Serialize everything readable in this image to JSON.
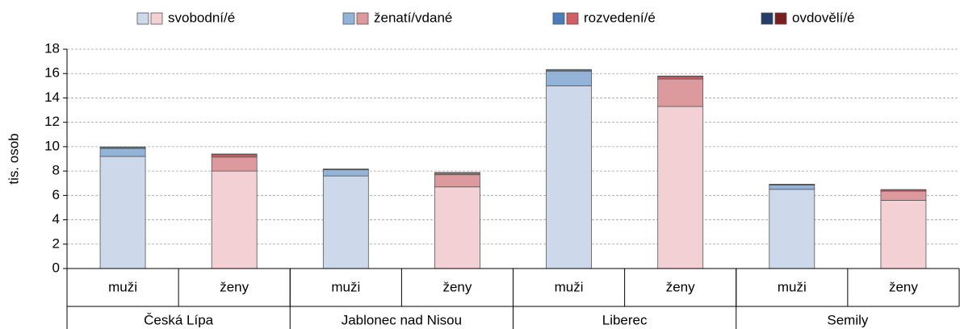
{
  "chart_data": {
    "type": "stacked_bar",
    "y_label": "tis. osob",
    "groups": [
      "Česká Lípa",
      "Jablonec nad Nisou",
      "Liberec",
      "Semily"
    ],
    "categories": [
      "muži",
      "ženy",
      "muži",
      "ženy",
      "muži",
      "ženy",
      "muži",
      "ženy"
    ],
    "series": [
      {
        "name": "svobodní/é",
        "colors": [
          "#cdd9ea",
          "#f2d0d3"
        ],
        "values": [
          9.2,
          8.0,
          7.6,
          6.7,
          15.0,
          13.3,
          6.5,
          5.6
        ]
      },
      {
        "name": "ženatí/vdané",
        "colors": [
          "#94b3d8",
          "#dc9a9f"
        ],
        "values": [
          0.65,
          1.15,
          0.5,
          1.0,
          1.2,
          2.25,
          0.35,
          0.75
        ]
      },
      {
        "name": "rozvedení/é",
        "colors": [
          "#4a7ebb",
          "#cf5f65"
        ],
        "values": [
          0.1,
          0.2,
          0.05,
          0.15,
          0.1,
          0.2,
          0.05,
          0.1
        ]
      },
      {
        "name": "ovdovělí/é",
        "colors": [
          "#253d6a",
          "#7a1f1f"
        ],
        "values": [
          0.03,
          0.05,
          0.02,
          0.03,
          0.03,
          0.05,
          0.02,
          0.03
        ]
      }
    ],
    "ylim": [
      0,
      18
    ],
    "yticks": [
      0,
      2,
      4,
      6,
      8,
      10,
      12,
      14,
      16,
      18
    ],
    "grid": true,
    "legend": "top"
  }
}
